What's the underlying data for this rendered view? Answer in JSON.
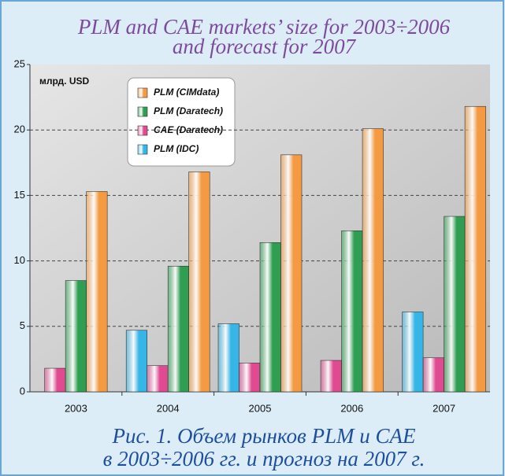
{
  "chart_data": {
    "type": "bar",
    "title": [
      "PLM and CAE markets’ size for 2003÷2006",
      "and forecast for 2007"
    ],
    "caption": [
      "Рис. 1. Объем рынков PLM и CAE",
      "в 2003÷2006 гг. и прогноз на 2007 г."
    ],
    "y_label": "млрд. USD",
    "categories": [
      "2003",
      "2004",
      "2005",
      "2006",
      "2007"
    ],
    "series": [
      {
        "name": "PLM (CIMdata)",
        "color": "#f39a42",
        "values": [
          15.3,
          16.8,
          18.1,
          20.1,
          21.8
        ]
      },
      {
        "name": "PLM (Daratech)",
        "color": "#2f9e52",
        "values": [
          8.5,
          9.6,
          11.4,
          12.3,
          13.4
        ]
      },
      {
        "name": "CAE (Daratech)",
        "color": "#e04a90",
        "values": [
          1.8,
          2.0,
          2.2,
          2.4,
          2.6
        ]
      },
      {
        "name": "PLM (IDC)",
        "color": "#36b6e6",
        "values": [
          null,
          4.7,
          5.2,
          null,
          6.1
        ]
      }
    ],
    "ylim": [
      0,
      25
    ],
    "yticks": [
      0,
      5,
      10,
      15,
      20,
      25
    ],
    "grid": true
  }
}
